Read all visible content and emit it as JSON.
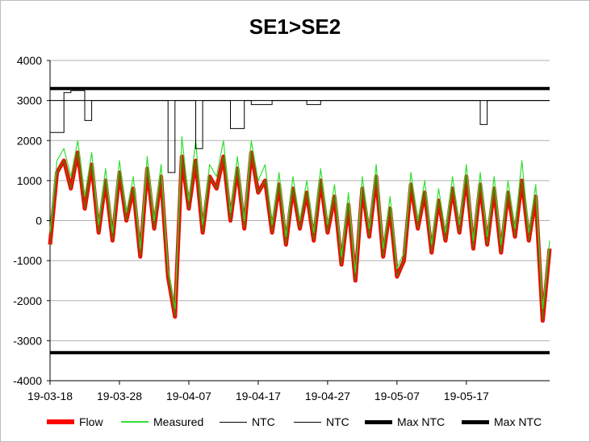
{
  "chart_data": {
    "type": "line",
    "title": "SE1>SE2",
    "xlabel": "",
    "ylabel": "",
    "ylim": [
      -4000,
      4000
    ],
    "yticks": [
      4000,
      3000,
      2000,
      1000,
      0,
      -1000,
      -2000,
      -3000,
      -4000
    ],
    "xticks": [
      "19-03-18",
      "19-03-28",
      "19-04-07",
      "19-04-17",
      "19-04-27",
      "19-05-07",
      "19-05-17"
    ],
    "x_start": "2019-03-18",
    "x_end": "2019-05-29",
    "grid": true,
    "legend_position": "bottom",
    "colors": {
      "flow": "#ff0000",
      "flow_dark": "#6b6b00",
      "measured": "#33dd33",
      "ntc": "#000000",
      "maxntc": "#000000",
      "grid": "#b0b0b0"
    },
    "series": [
      {
        "name": "Flow",
        "x": [
          "2019-03-18",
          "2019-03-19",
          "2019-03-20",
          "2019-03-21",
          "2019-03-22",
          "2019-03-23",
          "2019-03-24",
          "2019-03-25",
          "2019-03-26",
          "2019-03-27",
          "2019-03-28",
          "2019-03-29",
          "2019-03-30",
          "2019-03-31",
          "2019-04-01",
          "2019-04-02",
          "2019-04-03",
          "2019-04-04",
          "2019-04-05",
          "2019-04-06",
          "2019-04-07",
          "2019-04-08",
          "2019-04-09",
          "2019-04-10",
          "2019-04-11",
          "2019-04-12",
          "2019-04-13",
          "2019-04-14",
          "2019-04-15",
          "2019-04-16",
          "2019-04-17",
          "2019-04-18",
          "2019-04-19",
          "2019-04-20",
          "2019-04-21",
          "2019-04-22",
          "2019-04-23",
          "2019-04-24",
          "2019-04-25",
          "2019-04-26",
          "2019-04-27",
          "2019-04-28",
          "2019-04-29",
          "2019-04-30",
          "2019-05-01",
          "2019-05-02",
          "2019-05-03",
          "2019-05-04",
          "2019-05-05",
          "2019-05-06",
          "2019-05-07",
          "2019-05-08",
          "2019-05-09",
          "2019-05-10",
          "2019-05-11",
          "2019-05-12",
          "2019-05-13",
          "2019-05-14",
          "2019-05-15",
          "2019-05-16",
          "2019-05-17",
          "2019-05-18",
          "2019-05-19",
          "2019-05-20",
          "2019-05-21",
          "2019-05-22",
          "2019-05-23",
          "2019-05-24",
          "2019-05-25",
          "2019-05-26",
          "2019-05-27",
          "2019-05-28",
          "2019-05-29"
        ],
        "values": [
          -600,
          1200,
          1500,
          800,
          1700,
          300,
          1400,
          -300,
          1000,
          -500,
          1200,
          0,
          800,
          -900,
          1300,
          -200,
          1100,
          -1400,
          -2400,
          1600,
          300,
          1500,
          -300,
          1100,
          800,
          1600,
          0,
          1300,
          -200,
          1700,
          700,
          1000,
          -300,
          900,
          -600,
          800,
          -200,
          700,
          -500,
          1000,
          -300,
          600,
          -1100,
          400,
          -1500,
          800,
          -400,
          1100,
          -900,
          300,
          -1400,
          -1000,
          900,
          -200,
          700,
          -800,
          500,
          -500,
          800,
          -300,
          1100,
          -700,
          900,
          -600,
          800,
          -800,
          700,
          -400,
          1000,
          -500,
          600,
          -2500,
          -700
        ]
      },
      {
        "name": "Measured",
        "x": [
          "2019-03-18",
          "2019-03-19",
          "2019-03-20",
          "2019-03-21",
          "2019-03-22",
          "2019-03-23",
          "2019-03-24",
          "2019-03-25",
          "2019-03-26",
          "2019-03-27",
          "2019-03-28",
          "2019-03-29",
          "2019-03-30",
          "2019-03-31",
          "2019-04-01",
          "2019-04-02",
          "2019-04-03",
          "2019-04-04",
          "2019-04-05",
          "2019-04-06",
          "2019-04-07",
          "2019-04-08",
          "2019-04-09",
          "2019-04-10",
          "2019-04-11",
          "2019-04-12",
          "2019-04-13",
          "2019-04-14",
          "2019-04-15",
          "2019-04-16",
          "2019-04-17",
          "2019-04-18",
          "2019-04-19",
          "2019-04-20",
          "2019-04-21",
          "2019-04-22",
          "2019-04-23",
          "2019-04-24",
          "2019-04-25",
          "2019-04-26",
          "2019-04-27",
          "2019-04-28",
          "2019-04-29",
          "2019-04-30",
          "2019-05-01",
          "2019-05-02",
          "2019-05-03",
          "2019-05-04",
          "2019-05-05",
          "2019-05-06",
          "2019-05-07",
          "2019-05-08",
          "2019-05-09",
          "2019-05-10",
          "2019-05-11",
          "2019-05-12",
          "2019-05-13",
          "2019-05-14",
          "2019-05-15",
          "2019-05-16",
          "2019-05-17",
          "2019-05-18",
          "2019-05-19",
          "2019-05-20",
          "2019-05-21",
          "2019-05-22",
          "2019-05-23",
          "2019-05-24",
          "2019-05-25",
          "2019-05-26",
          "2019-05-27",
          "2019-05-28",
          "2019-05-29"
        ],
        "values": [
          -300,
          1500,
          1800,
          1100,
          2000,
          600,
          1700,
          -100,
          1300,
          -300,
          1500,
          200,
          1100,
          -700,
          1600,
          0,
          1400,
          -1200,
          -2200,
          2100,
          500,
          2000,
          -100,
          1400,
          1100,
          2000,
          200,
          1600,
          0,
          2000,
          1000,
          1400,
          -100,
          1200,
          -400,
          1100,
          0,
          1000,
          -300,
          1300,
          -100,
          900,
          -900,
          700,
          -1300,
          1100,
          -200,
          1400,
          -700,
          600,
          -1200,
          -800,
          1200,
          0,
          1000,
          -600,
          800,
          -300,
          1100,
          -100,
          1400,
          -500,
          1200,
          -400,
          1100,
          -600,
          1000,
          -200,
          1500,
          -300,
          900,
          -2200,
          -500
        ]
      },
      {
        "name": "NTC",
        "x": [
          "2019-03-18",
          "2019-03-20",
          "2019-03-20",
          "2019-03-21",
          "2019-03-21",
          "2019-03-23",
          "2019-03-23",
          "2019-03-24",
          "2019-03-24",
          "2019-04-04",
          "2019-04-04",
          "2019-04-05",
          "2019-04-05",
          "2019-04-08",
          "2019-04-08",
          "2019-04-09",
          "2019-04-09",
          "2019-04-13",
          "2019-04-13",
          "2019-04-15",
          "2019-04-15",
          "2019-04-16",
          "2019-04-16",
          "2019-04-19",
          "2019-04-19",
          "2019-04-24",
          "2019-04-24",
          "2019-04-26",
          "2019-04-26",
          "2019-05-19",
          "2019-05-19",
          "2019-05-20",
          "2019-05-20",
          "2019-05-29"
        ],
        "values": [
          2200,
          2200,
          3200,
          3200,
          3250,
          3250,
          2500,
          2500,
          3000,
          3000,
          1200,
          1200,
          3000,
          3000,
          1800,
          1800,
          3000,
          3000,
          2300,
          2300,
          3000,
          3000,
          2900,
          2900,
          3000,
          3000,
          2900,
          2900,
          3000,
          3000,
          2400,
          2400,
          3000,
          3000
        ]
      },
      {
        "name": "NTC",
        "x": [
          "2019-03-18",
          "2019-03-21",
          "2019-03-21",
          "2019-03-24",
          "2019-03-24",
          "2019-05-29"
        ],
        "values": [
          3000,
          3000,
          3000,
          3000,
          3000,
          3000
        ]
      },
      {
        "name": "Max NTC",
        "x": [
          "2019-03-18",
          "2019-05-29"
        ],
        "values": [
          3300,
          3300
        ]
      },
      {
        "name": "Max NTC",
        "x": [
          "2019-03-18",
          "2019-05-29"
        ],
        "values": [
          -3300,
          -3300
        ]
      }
    ]
  },
  "legend": [
    {
      "label": "Flow",
      "swatch": "flow"
    },
    {
      "label": "Measured",
      "swatch": "measured"
    },
    {
      "label": "NTC",
      "swatch": "ntc-thin"
    },
    {
      "label": "NTC",
      "swatch": "ntc-thin"
    },
    {
      "label": "Max NTC",
      "swatch": "maxntc"
    },
    {
      "label": "Max NTC",
      "swatch": "maxntc"
    }
  ]
}
